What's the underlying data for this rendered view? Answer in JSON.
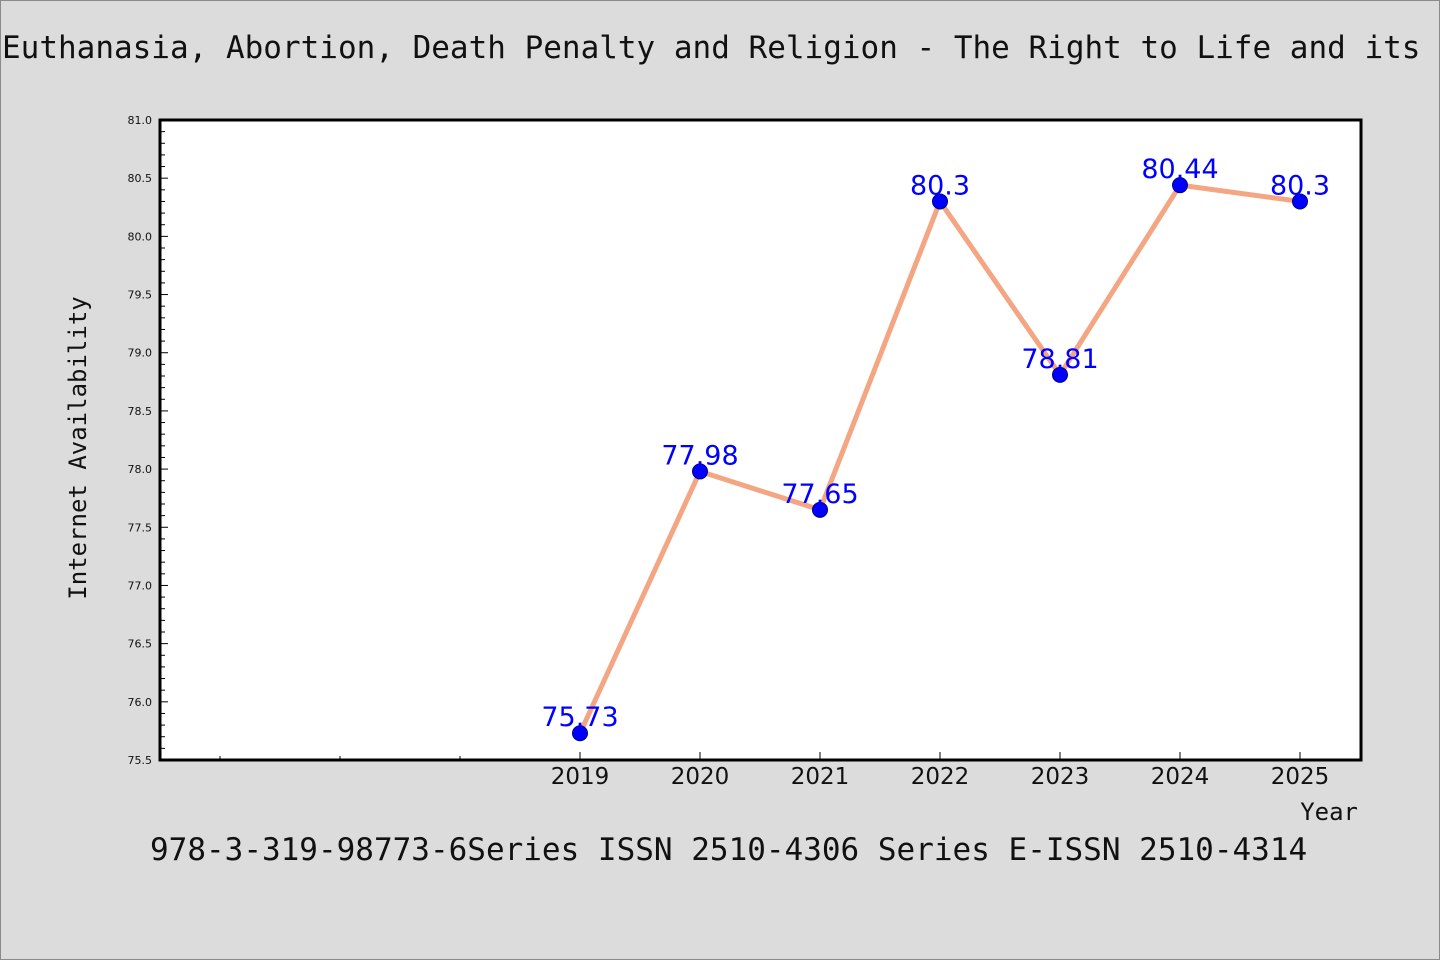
{
  "chart_data": {
    "type": "line",
    "title": "Euthanasia, Abortion, Death Penalty and Religion - The Right to Life and its Limitations",
    "ylabel": "Internet Availability",
    "xlabel": "Year",
    "ylim": [
      75.5,
      81.0
    ],
    "y_tick_step": 0.5,
    "y_ticks": [
      "75.5",
      "76.0",
      "76.5",
      "77.0",
      "77.5",
      "78.0",
      "78.5",
      "79.0",
      "79.5",
      "80.0",
      "80.5",
      "81.0"
    ],
    "x": [
      "2019",
      "2020",
      "2021",
      "2022",
      "2023",
      "2024",
      "2025"
    ],
    "values": [
      75.73,
      77.98,
      77.65,
      80.3,
      78.81,
      80.44,
      80.3
    ],
    "data_labels": [
      "75.73",
      "77.98",
      "77.65",
      "80.3",
      "78.81",
      "80.44",
      "80.3"
    ],
    "grid": false,
    "legend": "none",
    "line_color": "#f4a582",
    "marker_color": "#0000ff",
    "label_color": "#0000ff"
  },
  "footer": {
    "text": "978-3-319-98773-6Series ISSN 2510-4306 Series E-ISSN 2510-4314"
  }
}
